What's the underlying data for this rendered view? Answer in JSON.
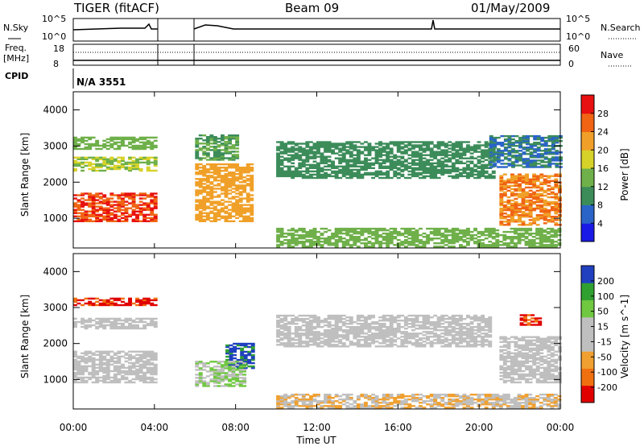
{
  "header": {
    "title": "TIGER (fitACF)",
    "beam": "Beam 09",
    "date": "01/May/2009"
  },
  "sky_panel": {
    "left_label": "N.Sky",
    "right_label": "N.Search",
    "left_ticks": [
      "10^5",
      "10^0"
    ],
    "right_ticks": [
      "10^5",
      "10^0"
    ]
  },
  "freq_panel": {
    "left_label_1": "Freq.",
    "left_label_2": "[MHz]",
    "right_label": "Nave",
    "left_ticks": [
      "18",
      "8"
    ],
    "right_ticks": [
      "60",
      "0"
    ]
  },
  "cpid": {
    "label": "CPID",
    "value": "N/A 3551"
  },
  "colors": {
    "power": [
      "#1a1ae6",
      "#2a64c8",
      "#3c8c5a",
      "#6fb04a",
      "#d7d22a",
      "#f0a028",
      "#f06414",
      "#e81010"
    ],
    "velocity": [
      "#e00000",
      "#f07010",
      "#f0a030",
      "#bfbfbf",
      "#bfbfbf",
      "#70c840",
      "#30a030",
      "#2040c0"
    ]
  },
  "chart_data": [
    {
      "type": "heatmap",
      "title": "",
      "xlabel": "Time UT",
      "ylabel": "Slant Range [km]",
      "x_ticks": [
        "00:00",
        "04:00",
        "08:00",
        "12:00",
        "16:00",
        "20:00",
        "00:00"
      ],
      "xlim": [
        0,
        24
      ],
      "y_ticks": [
        "1000",
        "2000",
        "3000",
        "4000"
      ],
      "ylim": [
        180,
        4500
      ],
      "colorbar_label": "Power [dB]",
      "colorbar_ticks": [
        "4",
        "8",
        "12",
        "16",
        "20",
        "24",
        "28"
      ],
      "colorbar_range": [
        0,
        32
      ],
      "data_gaps_hours": [
        [
          4.1,
          6.0
        ]
      ],
      "regions": [
        {
          "t": [
            0,
            4.1
          ],
          "r": [
            900,
            1700
          ],
          "level": 28
        },
        {
          "t": [
            0,
            4.1
          ],
          "r": [
            2300,
            2700
          ],
          "level": 16
        },
        {
          "t": [
            0,
            4.1
          ],
          "r": [
            2900,
            3250
          ],
          "level": 14
        },
        {
          "t": [
            6.0,
            8.8
          ],
          "r": [
            900,
            2500
          ],
          "level": 22
        },
        {
          "t": [
            6.0,
            8.0
          ],
          "r": [
            2600,
            3300
          ],
          "level": 12
        },
        {
          "t": [
            10.0,
            20.7
          ],
          "r": [
            2100,
            3100
          ],
          "level": 10
        },
        {
          "t": [
            10.0,
            24
          ],
          "r": [
            200,
            700
          ],
          "level": 14
        },
        {
          "t": [
            21.0,
            24
          ],
          "r": [
            800,
            2200
          ],
          "level": 24
        },
        {
          "t": [
            20.5,
            24
          ],
          "r": [
            2400,
            3300
          ],
          "level": 8
        }
      ]
    },
    {
      "type": "heatmap",
      "title": "",
      "xlabel": "Time UT",
      "ylabel": "Slant Range [km]",
      "x_ticks": [
        "00:00",
        "04:00",
        "08:00",
        "12:00",
        "16:00",
        "20:00",
        "00:00"
      ],
      "xlim": [
        0,
        24
      ],
      "y_ticks": [
        "1000",
        "2000",
        "3000",
        "4000"
      ],
      "ylim": [
        180,
        4500
      ],
      "colorbar_label": "Velocity [m s^-1]",
      "colorbar_ticks": [
        "200",
        "100",
        "50",
        "15",
        "-15",
        "-50",
        "-100",
        "-200"
      ],
      "colorbar_range": [
        -250,
        250
      ],
      "data_gaps_hours": [
        [
          4.1,
          6.0
        ]
      ],
      "regions": [
        {
          "t": [
            0,
            4.1
          ],
          "r": [
            900,
            1800
          ],
          "level": 0
        },
        {
          "t": [
            0,
            4.1
          ],
          "r": [
            2400,
            2700
          ],
          "level": 0
        },
        {
          "t": [
            0,
            4.1
          ],
          "r": [
            3050,
            3250
          ],
          "level": -200
        },
        {
          "t": [
            7.5,
            8.8
          ],
          "r": [
            1300,
            2000
          ],
          "level": 200
        },
        {
          "t": [
            6.0,
            8.5
          ],
          "r": [
            800,
            1500
          ],
          "level": 60
        },
        {
          "t": [
            10.0,
            20.5
          ],
          "r": [
            1900,
            2800
          ],
          "level": 0
        },
        {
          "t": [
            10.0,
            24
          ],
          "r": [
            200,
            600
          ],
          "level": -60
        },
        {
          "t": [
            21.0,
            24
          ],
          "r": [
            900,
            2200
          ],
          "level": 0
        },
        {
          "t": [
            22.0,
            23.0
          ],
          "r": [
            2500,
            2800
          ],
          "level": -200
        }
      ]
    }
  ]
}
